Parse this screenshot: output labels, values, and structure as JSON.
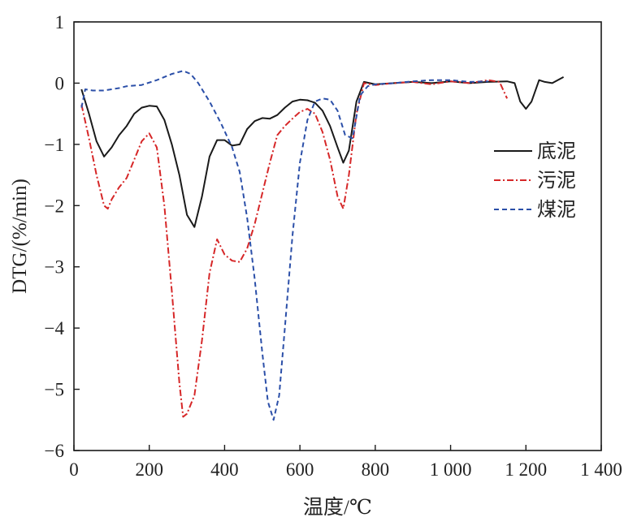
{
  "chart_data": {
    "type": "line",
    "xlabel": "温度/℃",
    "ylabel": "DTG/(%/min)",
    "xlim": [
      0,
      1400
    ],
    "ylim": [
      -6,
      1
    ],
    "x_ticks": [
      0,
      200,
      400,
      600,
      800,
      1000,
      1200,
      1400
    ],
    "x_tick_labels": [
      "0",
      "200",
      "400",
      "600",
      "800",
      "1 000",
      "1 200",
      "1 400"
    ],
    "y_ticks": [
      1,
      0,
      -1,
      -2,
      -3,
      -4,
      -5,
      -6
    ],
    "y_tick_labels": [
      "1",
      "0",
      "−1",
      "−2",
      "−3",
      "−4",
      "−5",
      "−6"
    ],
    "grid": false,
    "legend_position": "right",
    "series": [
      {
        "name": "底泥",
        "color": "#1a1a1a",
        "dash": "solid",
        "points": [
          [
            20,
            -0.1
          ],
          [
            40,
            -0.5
          ],
          [
            60,
            -0.95
          ],
          [
            80,
            -1.2
          ],
          [
            100,
            -1.05
          ],
          [
            120,
            -0.85
          ],
          [
            140,
            -0.7
          ],
          [
            160,
            -0.5
          ],
          [
            180,
            -0.4
          ],
          [
            200,
            -0.37
          ],
          [
            220,
            -0.38
          ],
          [
            240,
            -0.6
          ],
          [
            260,
            -1.0
          ],
          [
            280,
            -1.5
          ],
          [
            300,
            -2.15
          ],
          [
            320,
            -2.35
          ],
          [
            340,
            -1.85
          ],
          [
            360,
            -1.2
          ],
          [
            380,
            -0.93
          ],
          [
            400,
            -0.93
          ],
          [
            420,
            -1.02
          ],
          [
            440,
            -1.0
          ],
          [
            460,
            -0.75
          ],
          [
            480,
            -0.62
          ],
          [
            500,
            -0.57
          ],
          [
            520,
            -0.58
          ],
          [
            540,
            -0.52
          ],
          [
            560,
            -0.4
          ],
          [
            580,
            -0.3
          ],
          [
            600,
            -0.27
          ],
          [
            620,
            -0.28
          ],
          [
            640,
            -0.32
          ],
          [
            660,
            -0.45
          ],
          [
            680,
            -0.7
          ],
          [
            700,
            -1.05
          ],
          [
            715,
            -1.3
          ],
          [
            730,
            -1.1
          ],
          [
            750,
            -0.3
          ],
          [
            770,
            0.02
          ],
          [
            800,
            -0.02
          ],
          [
            850,
            0.0
          ],
          [
            900,
            0.02
          ],
          [
            950,
            0.0
          ],
          [
            1000,
            0.03
          ],
          [
            1050,
            0.0
          ],
          [
            1100,
            0.02
          ],
          [
            1150,
            0.03
          ],
          [
            1170,
            0.0
          ],
          [
            1185,
            -0.3
          ],
          [
            1200,
            -0.42
          ],
          [
            1215,
            -0.3
          ],
          [
            1235,
            0.05
          ],
          [
            1250,
            0.02
          ],
          [
            1270,
            0.0
          ],
          [
            1300,
            0.1
          ]
        ]
      },
      {
        "name": "污泥",
        "color": "#d62728",
        "dash": "dashdot",
        "points": [
          [
            20,
            -0.35
          ],
          [
            40,
            -0.9
          ],
          [
            60,
            -1.5
          ],
          [
            80,
            -2.0
          ],
          [
            90,
            -2.05
          ],
          [
            100,
            -1.9
          ],
          [
            120,
            -1.7
          ],
          [
            140,
            -1.55
          ],
          [
            160,
            -1.25
          ],
          [
            180,
            -0.95
          ],
          [
            200,
            -0.82
          ],
          [
            220,
            -1.05
          ],
          [
            240,
            -2.0
          ],
          [
            260,
            -3.4
          ],
          [
            280,
            -4.9
          ],
          [
            290,
            -5.45
          ],
          [
            300,
            -5.4
          ],
          [
            320,
            -5.1
          ],
          [
            340,
            -4.2
          ],
          [
            360,
            -3.1
          ],
          [
            380,
            -2.55
          ],
          [
            400,
            -2.8
          ],
          [
            420,
            -2.9
          ],
          [
            440,
            -2.92
          ],
          [
            460,
            -2.7
          ],
          [
            480,
            -2.3
          ],
          [
            500,
            -1.8
          ],
          [
            520,
            -1.3
          ],
          [
            540,
            -0.85
          ],
          [
            560,
            -0.7
          ],
          [
            580,
            -0.58
          ],
          [
            600,
            -0.47
          ],
          [
            620,
            -0.42
          ],
          [
            640,
            -0.5
          ],
          [
            660,
            -0.8
          ],
          [
            680,
            -1.25
          ],
          [
            700,
            -1.85
          ],
          [
            715,
            -2.05
          ],
          [
            730,
            -1.5
          ],
          [
            750,
            -0.5
          ],
          [
            770,
            0.0
          ],
          [
            800,
            -0.03
          ],
          [
            850,
            0.0
          ],
          [
            900,
            0.02
          ],
          [
            950,
            -0.02
          ],
          [
            1000,
            0.03
          ],
          [
            1050,
            0.0
          ],
          [
            1100,
            0.05
          ],
          [
            1130,
            0.02
          ],
          [
            1150,
            -0.25
          ]
        ]
      },
      {
        "name": "煤泥",
        "color": "#2b4fa8",
        "dash": "dashed",
        "points": [
          [
            20,
            -0.4
          ],
          [
            30,
            -0.1
          ],
          [
            50,
            -0.12
          ],
          [
            80,
            -0.12
          ],
          [
            100,
            -0.1
          ],
          [
            120,
            -0.08
          ],
          [
            140,
            -0.05
          ],
          [
            180,
            -0.03
          ],
          [
            220,
            0.05
          ],
          [
            260,
            0.15
          ],
          [
            290,
            0.2
          ],
          [
            310,
            0.15
          ],
          [
            330,
            0.0
          ],
          [
            360,
            -0.3
          ],
          [
            390,
            -0.65
          ],
          [
            420,
            -1.05
          ],
          [
            440,
            -1.45
          ],
          [
            460,
            -2.2
          ],
          [
            480,
            -3.2
          ],
          [
            500,
            -4.4
          ],
          [
            515,
            -5.2
          ],
          [
            530,
            -5.5
          ],
          [
            545,
            -5.1
          ],
          [
            560,
            -4.0
          ],
          [
            580,
            -2.5
          ],
          [
            600,
            -1.3
          ],
          [
            620,
            -0.6
          ],
          [
            640,
            -0.3
          ],
          [
            660,
            -0.25
          ],
          [
            680,
            -0.27
          ],
          [
            700,
            -0.45
          ],
          [
            720,
            -0.85
          ],
          [
            740,
            -0.9
          ],
          [
            760,
            -0.2
          ],
          [
            780,
            -0.05
          ],
          [
            800,
            -0.02
          ],
          [
            850,
            0.0
          ],
          [
            900,
            0.03
          ],
          [
            950,
            0.05
          ],
          [
            1000,
            0.05
          ],
          [
            1050,
            0.02
          ],
          [
            1100,
            0.03
          ]
        ]
      }
    ]
  }
}
